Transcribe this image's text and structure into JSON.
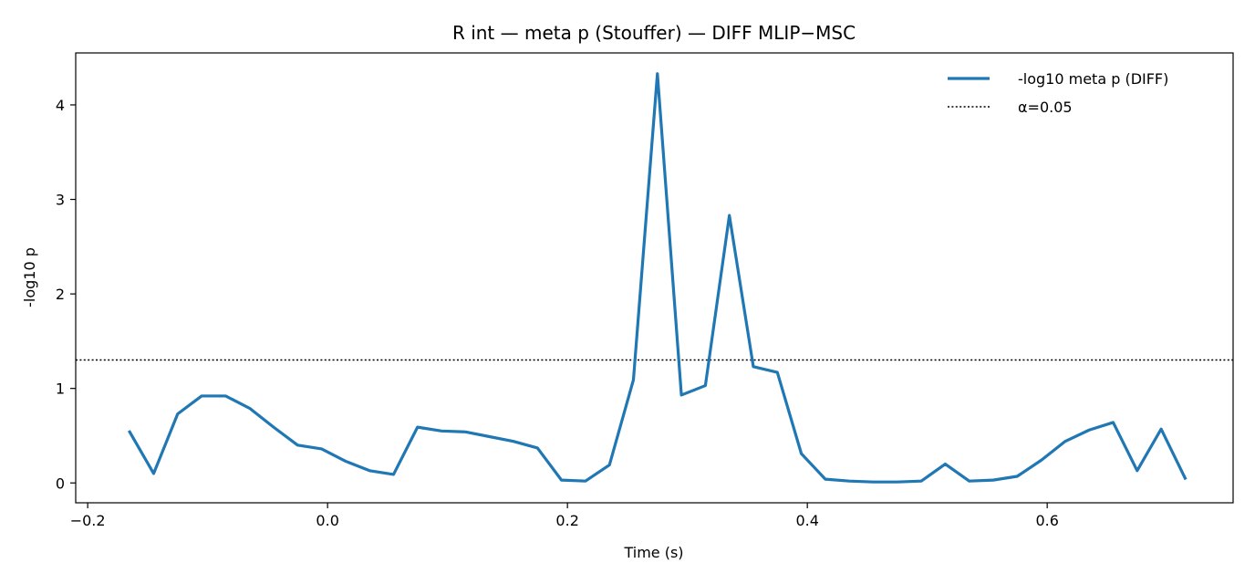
{
  "chart_data": {
    "type": "line",
    "title": "R int — meta p (Stouffer) — DIFF MLIP−MSC",
    "xlabel": "Time (s)",
    "ylabel": "-log10 p",
    "xlim": [
      -0.21,
      0.755
    ],
    "ylim": [
      -0.21,
      4.55
    ],
    "xticks": [
      -0.2,
      0.0,
      0.2,
      0.4,
      0.6
    ],
    "xtick_labels": [
      "−0.2",
      "0.0",
      "0.2",
      "0.4",
      "0.6"
    ],
    "yticks": [
      0,
      1,
      2,
      3,
      4
    ],
    "ytick_labels": [
      "0",
      "1",
      "2",
      "3",
      "4"
    ],
    "grid": false,
    "legend_position": "top-right",
    "series": [
      {
        "name": "-log10 meta p (DIFF)",
        "color": "#1f77b4",
        "x": [
          -0.165,
          -0.145,
          -0.125,
          -0.105,
          -0.085,
          -0.065,
          -0.045,
          -0.025,
          -0.005,
          0.015,
          0.035,
          0.055,
          0.075,
          0.095,
          0.115,
          0.135,
          0.155,
          0.175,
          0.195,
          0.215,
          0.235,
          0.255,
          0.275,
          0.295,
          0.315,
          0.335,
          0.355,
          0.375,
          0.395,
          0.415,
          0.435,
          0.455,
          0.475,
          0.495,
          0.515,
          0.535,
          0.555,
          0.575,
          0.595,
          0.615,
          0.635,
          0.655,
          0.675,
          0.695,
          0.715
        ],
        "y": [
          0.54,
          0.1,
          0.73,
          0.92,
          0.92,
          0.79,
          0.59,
          0.4,
          0.36,
          0.23,
          0.13,
          0.09,
          0.59,
          0.55,
          0.54,
          0.49,
          0.44,
          0.37,
          0.03,
          0.02,
          0.19,
          1.09,
          4.33,
          0.93,
          1.03,
          2.83,
          1.23,
          1.17,
          0.31,
          0.04,
          0.02,
          0.01,
          0.01,
          0.02,
          0.2,
          0.02,
          0.03,
          0.07,
          0.24,
          0.44,
          0.56,
          0.64,
          0.13,
          0.57,
          0.05
        ]
      }
    ],
    "reference_lines": [
      {
        "name": "α=0.05",
        "y": 1.30103,
        "style": "dotted",
        "color": "#000000"
      }
    ]
  }
}
